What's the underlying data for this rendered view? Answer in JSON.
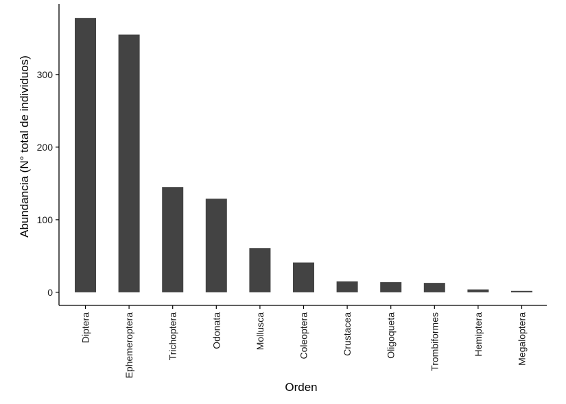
{
  "chart_data": {
    "type": "bar",
    "title": "",
    "xlabel": "Orden",
    "ylabel": "Abundancia (N° total de individuos)",
    "categories": [
      "Diptera",
      "Ephemeroptera",
      "Trichoptera",
      "Odonata",
      "Mollusca",
      "Coleoptera",
      "Crustacea",
      "Oligoqueta",
      "Trombiformes",
      "Hemiptera",
      "Megaloptera"
    ],
    "values": [
      378,
      355,
      145,
      129,
      61,
      41,
      15,
      14,
      13,
      4,
      2
    ],
    "yticks": [
      0,
      100,
      200,
      300
    ],
    "ylim": [
      -18,
      397
    ],
    "grid": false,
    "legend": "none",
    "bar_color": "#434343",
    "axis_color": "#000000"
  }
}
